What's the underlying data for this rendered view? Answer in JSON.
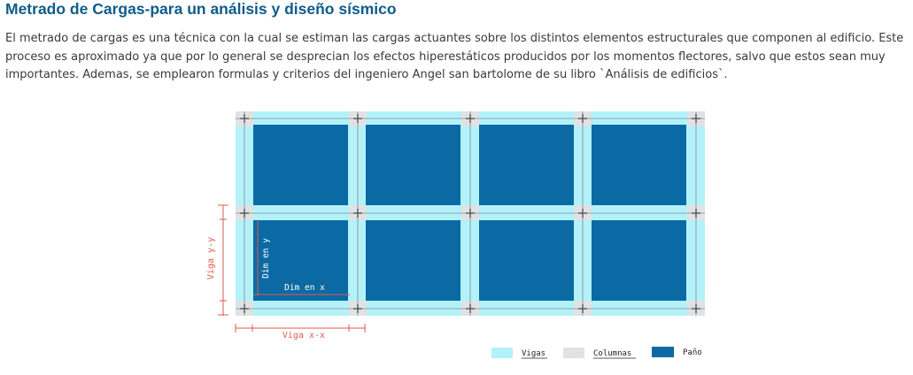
{
  "header": {
    "title": "Metrado de Cargas-para un análisis y diseño sísmico"
  },
  "intro": {
    "text": "El metrado de cargas es una técnica con la cual se estiman las cargas actuantes sobre los distintos elementos estructurales que componen al edificio. Este proceso es aproximado ya que por lo general se desprecian los efectos hiperestáticos producidos por los momentos flectores, salvo que estos sean muy importantes. Ademas, se emplearon formulas y criterios del ingeniero Angel san bartolome de su libro `Análisis de edificios`."
  },
  "diagram": {
    "labels": {
      "dim_y": "Dim en y",
      "dim_x": "Dim en x",
      "viga_yy": "Viga y-y",
      "viga_xx": "Viga x-x"
    },
    "legend": [
      {
        "label": "Vigas",
        "color": "#b3f2fa"
      },
      {
        "label": "Columnas",
        "color": "#e0e2e4"
      },
      {
        "label": "Paño",
        "color": "#0b6aa3"
      }
    ],
    "colors": {
      "viga": "#b3f2fa",
      "columna": "#e0e2e4",
      "pano": "#0b6aa3",
      "dimension": "#e05a4e",
      "grid_line": "#8a8a8a"
    }
  }
}
